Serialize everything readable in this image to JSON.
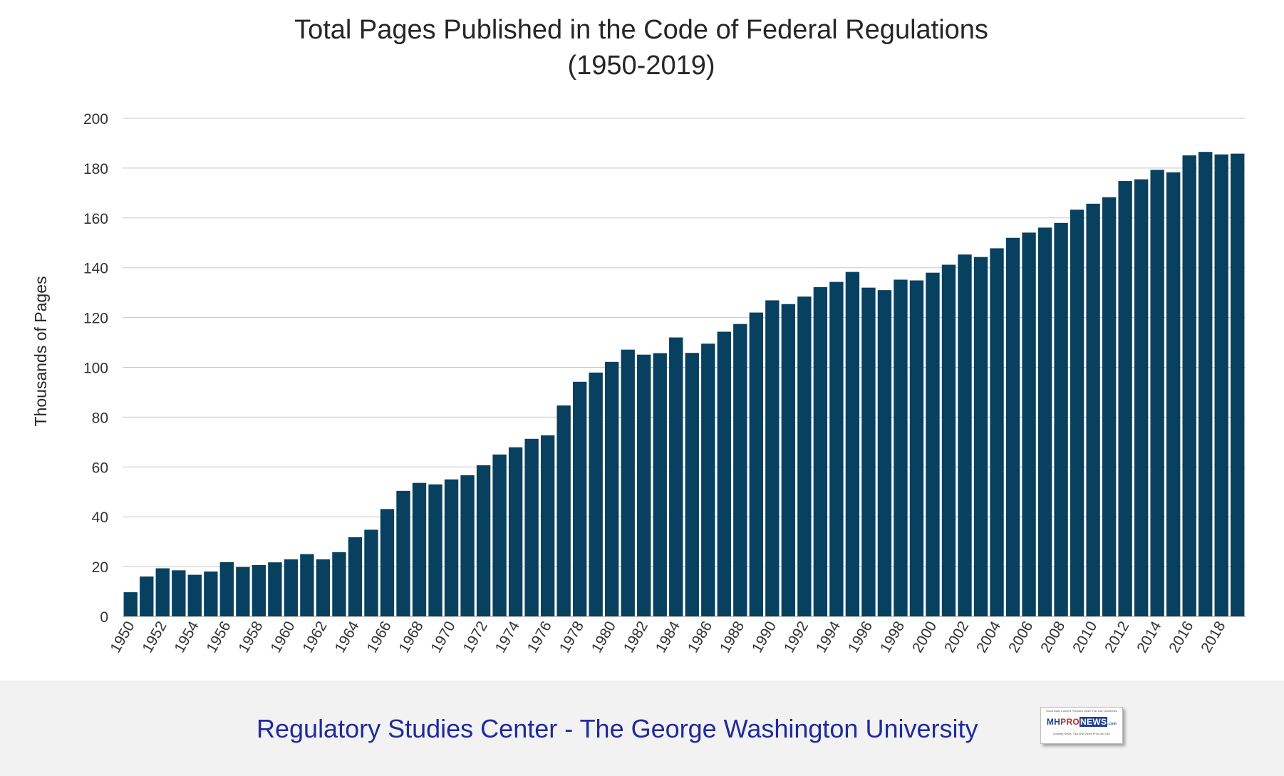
{
  "chart_data": {
    "type": "bar",
    "title": "Total Pages Published in the Code of Federal Regulations",
    "subtitle": "(1950-2019)",
    "xlabel": "",
    "ylabel": "Thousands of Pages",
    "ylim": [
      0,
      200
    ],
    "yticks": [
      0,
      20,
      40,
      60,
      80,
      100,
      120,
      140,
      160,
      180,
      200
    ],
    "grid": true,
    "legend": "none",
    "bar_color": "#08405f",
    "categories": [
      "1950",
      "1951",
      "1952",
      "1953",
      "1954",
      "1955",
      "1956",
      "1957",
      "1958",
      "1959",
      "1960",
      "1961",
      "1962",
      "1963",
      "1964",
      "1965",
      "1966",
      "1967",
      "1968",
      "1969",
      "1970",
      "1971",
      "1972",
      "1973",
      "1974",
      "1975",
      "1976",
      "1977",
      "1978",
      "1979",
      "1980",
      "1981",
      "1982",
      "1983",
      "1984",
      "1985",
      "1986",
      "1987",
      "1988",
      "1989",
      "1990",
      "1991",
      "1992",
      "1993",
      "1994",
      "1995",
      "1996",
      "1997",
      "1998",
      "1999",
      "2000",
      "2001",
      "2002",
      "2003",
      "2004",
      "2005",
      "2006",
      "2007",
      "2008",
      "2009",
      "2010",
      "2011",
      "2012",
      "2013",
      "2014",
      "2015",
      "2016",
      "2017",
      "2018",
      "2019"
    ],
    "x_tick_labels": [
      "1950",
      "1952",
      "1954",
      "1956",
      "1958",
      "1960",
      "1962",
      "1964",
      "1966",
      "1968",
      "1970",
      "1972",
      "1974",
      "1976",
      "1978",
      "1980",
      "1982",
      "1984",
      "1986",
      "1988",
      "1990",
      "1992",
      "1994",
      "1996",
      "1998",
      "2000",
      "2002",
      "2004",
      "2006",
      "2008",
      "2010",
      "2012",
      "2014",
      "2016",
      "2018"
    ],
    "values": [
      9.7,
      16.0,
      19.3,
      18.5,
      16.7,
      18.0,
      21.8,
      19.8,
      20.6,
      21.7,
      22.9,
      25.0,
      22.9,
      25.8,
      31.8,
      34.8,
      43.1,
      50.4,
      53.6,
      53.0,
      55.0,
      56.7,
      60.7,
      65.0,
      67.9,
      71.3,
      72.7,
      84.7,
      94.2,
      97.9,
      102.2,
      107.1,
      105.1,
      105.7,
      112.0,
      105.8,
      109.5,
      114.3,
      117.4,
      122.0,
      126.9,
      125.4,
      128.4,
      132.2,
      134.3,
      138.3,
      132.0,
      131.0,
      135.2,
      134.9,
      138.0,
      141.2,
      145.3,
      144.3,
      147.8,
      152.0,
      154.1,
      156.1,
      158.0,
      163.3,
      165.7,
      168.3,
      174.8,
      175.5,
      179.3,
      178.3,
      185.1,
      186.5,
      185.5,
      185.8
    ]
  },
  "footer": {
    "source": "Regulatory Studies Center - The George Washington University",
    "source_color": "#1f2a9c",
    "background": "#f2f2f2"
  },
  "logo": {
    "tagline": "Good Daily Content Provided Under Fair Use Guidelines",
    "word_part1": "MH",
    "word_part2": "PRO",
    "word_part3": "NEWS",
    "word_suffix": ".com",
    "subline": "Industry News, Tips and Views Pros can Use",
    "colors": [
      "#1f3f8f",
      "#c62828"
    ]
  }
}
